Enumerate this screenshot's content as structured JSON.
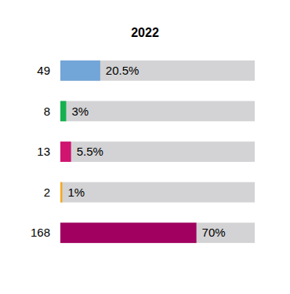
{
  "chart_data": {
    "type": "bar",
    "title": "2022",
    "orientation": "horizontal",
    "counts": [
      49,
      8,
      13,
      2,
      168
    ],
    "values": [
      20.5,
      3,
      5.5,
      1,
      70
    ],
    "value_labels": [
      "20.5%",
      "3%",
      "5.5%",
      "1%",
      "70%"
    ],
    "colors": [
      "#72a5d8",
      "#16b04f",
      "#d01470",
      "#f6a81a",
      "#a10060"
    ],
    "xlim": [
      0,
      100
    ],
    "data_labels": true,
    "tick_labels": false
  }
}
